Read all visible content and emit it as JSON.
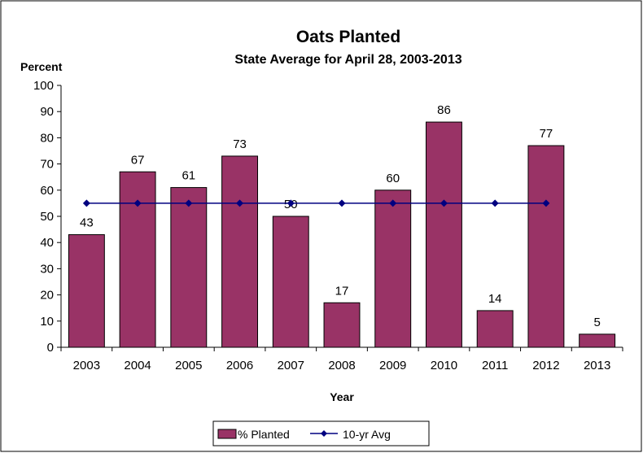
{
  "chart_data": {
    "type": "bar",
    "title": "Oats Planted",
    "subtitle": "State Average for April 28, 2003-2013",
    "ylabel": "Percent",
    "xlabel": "Year",
    "ylim": [
      0,
      100
    ],
    "yticks": [
      0,
      10,
      20,
      30,
      40,
      50,
      60,
      70,
      80,
      90,
      100
    ],
    "grid": false,
    "legend_position": "bottom",
    "categories": [
      "2003",
      "2004",
      "2005",
      "2006",
      "2007",
      "2008",
      "2009",
      "2010",
      "2011",
      "2012",
      "2013"
    ],
    "series": [
      {
        "name": "% Planted",
        "type": "bar",
        "color": "#993366",
        "values": [
          43,
          67,
          61,
          73,
          50,
          17,
          60,
          86,
          14,
          77,
          5
        ],
        "data_labels": [
          "43",
          "67",
          "61",
          "73",
          "50",
          "17",
          "60",
          "86",
          "14",
          "77",
          "5"
        ]
      },
      {
        "name": "10-yr Avg",
        "type": "line",
        "color": "#000080",
        "marker": "diamond",
        "values": [
          55,
          55,
          55,
          55,
          55,
          55,
          55,
          55,
          55,
          55,
          null
        ]
      }
    ]
  }
}
